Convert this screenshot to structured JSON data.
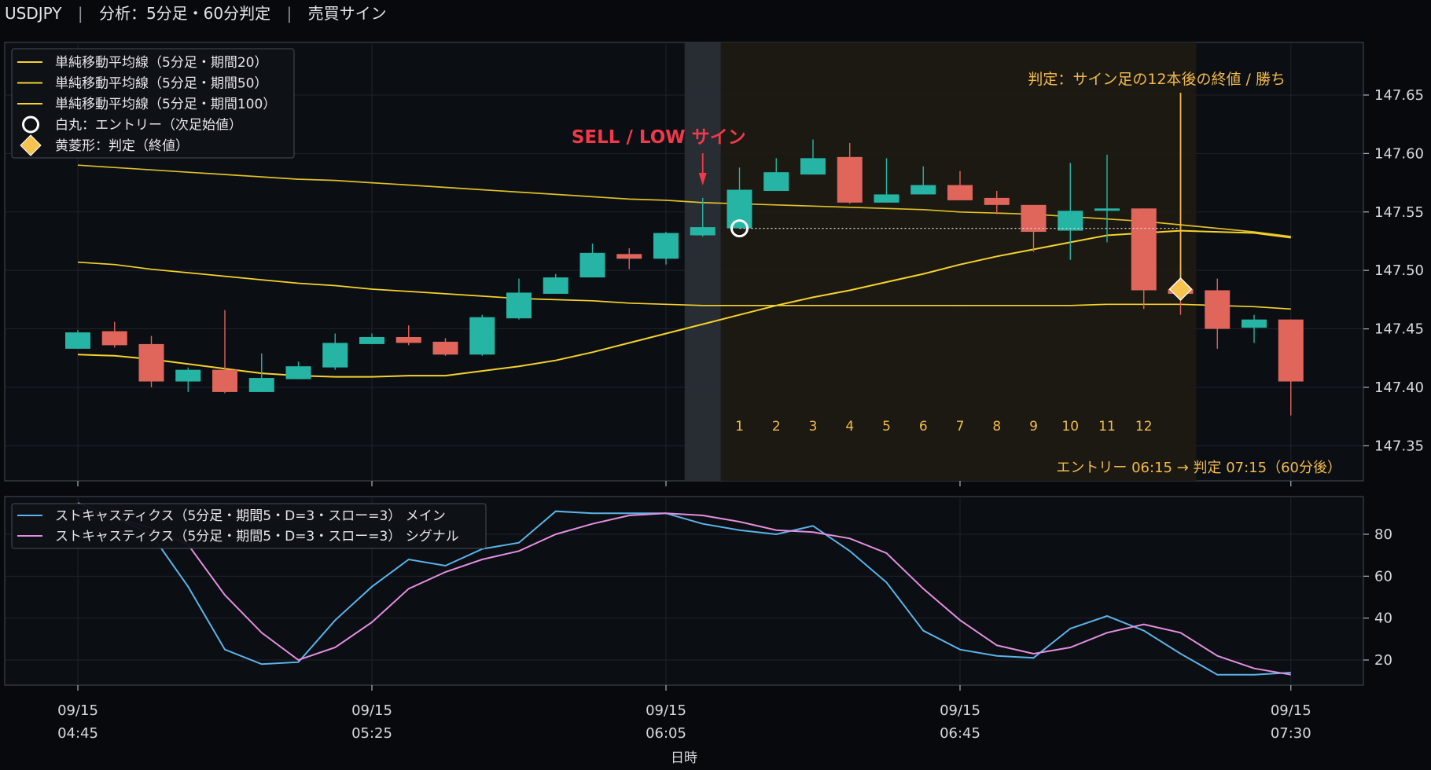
{
  "header": {
    "symbol": "USDJPY",
    "sep1": "|",
    "analysis": "分析：5分足・60分判定",
    "sep2": "|",
    "section": "売買サイン"
  },
  "colors": {
    "up": "#26b5a4",
    "down": "#e0665c",
    "sma": "#f5d32c",
    "signal_text": "#f0394a",
    "judge": "#f2ba4c",
    "stoch_main": "#5cb3ea",
    "stoch_signal": "#e48fe0"
  },
  "chart_data": [
    {
      "type": "candlestick",
      "times": [
        "04:45",
        "04:50",
        "04:55",
        "05:00",
        "05:05",
        "05:10",
        "05:15",
        "05:20",
        "05:25",
        "05:30",
        "05:35",
        "05:40",
        "05:45",
        "05:50",
        "05:55",
        "06:00",
        "06:05",
        "06:10",
        "06:15",
        "06:20",
        "06:25",
        "06:30",
        "06:35",
        "06:40",
        "06:45",
        "06:50",
        "06:55",
        "07:00",
        "07:05",
        "07:10",
        "07:15",
        "07:20",
        "07:25",
        "07:30"
      ],
      "ohlc": [
        [
          147.433,
          147.449,
          147.433,
          147.447
        ],
        [
          147.448,
          147.456,
          147.434,
          147.436
        ],
        [
          147.437,
          147.444,
          147.4,
          147.405
        ],
        [
          147.405,
          147.417,
          147.396,
          147.415
        ],
        [
          147.415,
          147.466,
          147.395,
          147.396
        ],
        [
          147.396,
          147.429,
          147.396,
          147.408
        ],
        [
          147.407,
          147.422,
          147.407,
          147.418
        ],
        [
          147.417,
          147.446,
          147.415,
          147.438
        ],
        [
          147.437,
          147.446,
          147.437,
          147.443
        ],
        [
          147.443,
          147.453,
          147.436,
          147.438
        ],
        [
          147.439,
          147.442,
          147.427,
          147.428
        ],
        [
          147.428,
          147.462,
          147.427,
          147.46
        ],
        [
          147.459,
          147.493,
          147.458,
          147.481
        ],
        [
          147.48,
          147.497,
          147.48,
          147.494
        ],
        [
          147.494,
          147.523,
          147.494,
          147.515
        ],
        [
          147.514,
          147.519,
          147.501,
          147.51
        ],
        [
          147.51,
          147.533,
          147.505,
          147.532
        ],
        [
          147.53,
          147.562,
          147.529,
          147.537
        ],
        [
          147.536,
          147.588,
          147.536,
          147.569
        ],
        [
          147.568,
          147.596,
          147.568,
          147.584
        ],
        [
          147.582,
          147.612,
          147.582,
          147.596
        ],
        [
          147.597,
          147.609,
          147.557,
          147.558
        ],
        [
          147.558,
          147.596,
          147.558,
          147.565
        ],
        [
          147.565,
          147.589,
          147.565,
          147.573
        ],
        [
          147.573,
          147.585,
          147.561,
          147.56
        ],
        [
          147.562,
          147.568,
          147.548,
          147.556
        ],
        [
          147.556,
          147.556,
          147.516,
          147.533
        ],
        [
          147.534,
          147.592,
          147.509,
          147.551
        ],
        [
          147.551,
          147.599,
          147.524,
          147.553
        ],
        [
          147.553,
          147.553,
          147.467,
          147.483
        ],
        [
          147.484,
          147.505,
          147.462,
          147.48
        ],
        [
          147.483,
          147.493,
          147.433,
          147.45
        ],
        [
          147.451,
          147.462,
          147.438,
          147.458
        ],
        [
          147.458,
          147.458,
          147.376,
          147.405
        ]
      ],
      "series": [
        {
          "name": "単純移動平均線（5分足・期間20）",
          "values": [
            147.428,
            147.427,
            147.424,
            147.42,
            147.416,
            147.412,
            147.41,
            147.409,
            147.409,
            147.41,
            147.41,
            147.414,
            147.418,
            147.423,
            147.43,
            147.438,
            147.446,
            147.454,
            147.462,
            147.47,
            147.477,
            147.483,
            147.49,
            147.497,
            147.505,
            147.512,
            147.518,
            147.524,
            147.53,
            147.532,
            147.534,
            147.533,
            147.532,
            147.528
          ]
        },
        {
          "name": "単純移動平均線（5分足・期間50）",
          "values": [
            147.507,
            147.505,
            147.501,
            147.498,
            147.495,
            147.492,
            147.489,
            147.487,
            147.484,
            147.482,
            147.48,
            147.478,
            147.476,
            147.475,
            147.474,
            147.472,
            147.471,
            147.47,
            147.47,
            147.47,
            147.47,
            147.47,
            147.47,
            147.47,
            147.47,
            147.47,
            147.47,
            147.47,
            147.471,
            147.471,
            147.471,
            147.47,
            147.469,
            147.467
          ]
        },
        {
          "name": "単純移動平均線（5分足・期間100）",
          "values": [
            147.59,
            147.588,
            147.586,
            147.584,
            147.582,
            147.58,
            147.578,
            147.577,
            147.575,
            147.573,
            147.571,
            147.569,
            147.567,
            147.565,
            147.563,
            147.561,
            147.56,
            147.558,
            147.557,
            147.556,
            147.555,
            147.554,
            147.553,
            147.552,
            147.55,
            147.549,
            147.548,
            147.546,
            147.544,
            147.542,
            147.539,
            147.536,
            147.533,
            147.529
          ]
        }
      ],
      "ylim": [
        147.32,
        147.695
      ],
      "yticks": [
        "147.35",
        "147.40",
        "147.45",
        "147.50",
        "147.55",
        "147.60",
        "147.65"
      ],
      "legend": [
        {
          "label": "単純移動平均線（5分足・期間20）",
          "kind": "line"
        },
        {
          "label": "単純移動平均線（5分足・期間50）",
          "kind": "line"
        },
        {
          "label": "単純移動平均線（5分足・期間100）",
          "kind": "line"
        },
        {
          "label": "白丸：エントリー（次足始値）",
          "kind": "circle"
        },
        {
          "label": "黄菱形：判定（終値）",
          "kind": "diamond"
        }
      ],
      "legend_position": "top-left",
      "signal": {
        "label": "SELL / LOW サイン",
        "time": "06:10"
      },
      "entry": {
        "time": "06:15",
        "price": 147.536
      },
      "judge": {
        "time": "07:15",
        "price": 147.484,
        "label": "判定：サイン足の12本後の終値 / 勝ち"
      },
      "bar_counts": [
        "1",
        "2",
        "3",
        "4",
        "5",
        "6",
        "7",
        "8",
        "9",
        "10",
        "11",
        "12"
      ],
      "footer_note": "エントリー 06:15 → 判定 07:15（60分後）"
    },
    {
      "type": "line",
      "series": [
        {
          "name": "ストキャスティクス（5分足・期間5・D=3・スロー=3） メイン",
          "values": [
            95,
            88,
            80,
            55,
            25,
            18,
            19,
            39,
            55,
            68,
            65,
            73,
            76,
            91,
            90,
            90,
            90,
            85,
            82,
            80,
            84,
            72,
            57,
            34,
            25,
            22,
            21,
            35,
            41,
            34,
            23,
            13,
            13,
            14
          ]
        },
        {
          "name": "ストキャスティクス（5分足・期間5・D=3・スロー=3） シグナル",
          "values": [
            92,
            88,
            83,
            75,
            51,
            33,
            20,
            26,
            38,
            54,
            62,
            68,
            72,
            80,
            85,
            89,
            90,
            89,
            86,
            82,
            81,
            78,
            71,
            54,
            39,
            27,
            23,
            26,
            33,
            37,
            33,
            22,
            16,
            13
          ]
        }
      ],
      "ylim": [
        8,
        98
      ],
      "yticks": [
        "20",
        "40",
        "60",
        "80"
      ],
      "legend_position": "top-left"
    }
  ],
  "xaxis": {
    "ticks": [
      {
        "time": "04:45",
        "date": "09/15",
        "label": "04:45"
      },
      {
        "time": "05:25",
        "date": "09/15",
        "label": "05:25"
      },
      {
        "time": "06:05",
        "date": "09/15",
        "label": "06:05"
      },
      {
        "time": "06:45",
        "date": "09/15",
        "label": "06:45"
      },
      {
        "time": "07:30",
        "date": "09/15",
        "label": "07:30"
      }
    ],
    "label": "日時"
  }
}
